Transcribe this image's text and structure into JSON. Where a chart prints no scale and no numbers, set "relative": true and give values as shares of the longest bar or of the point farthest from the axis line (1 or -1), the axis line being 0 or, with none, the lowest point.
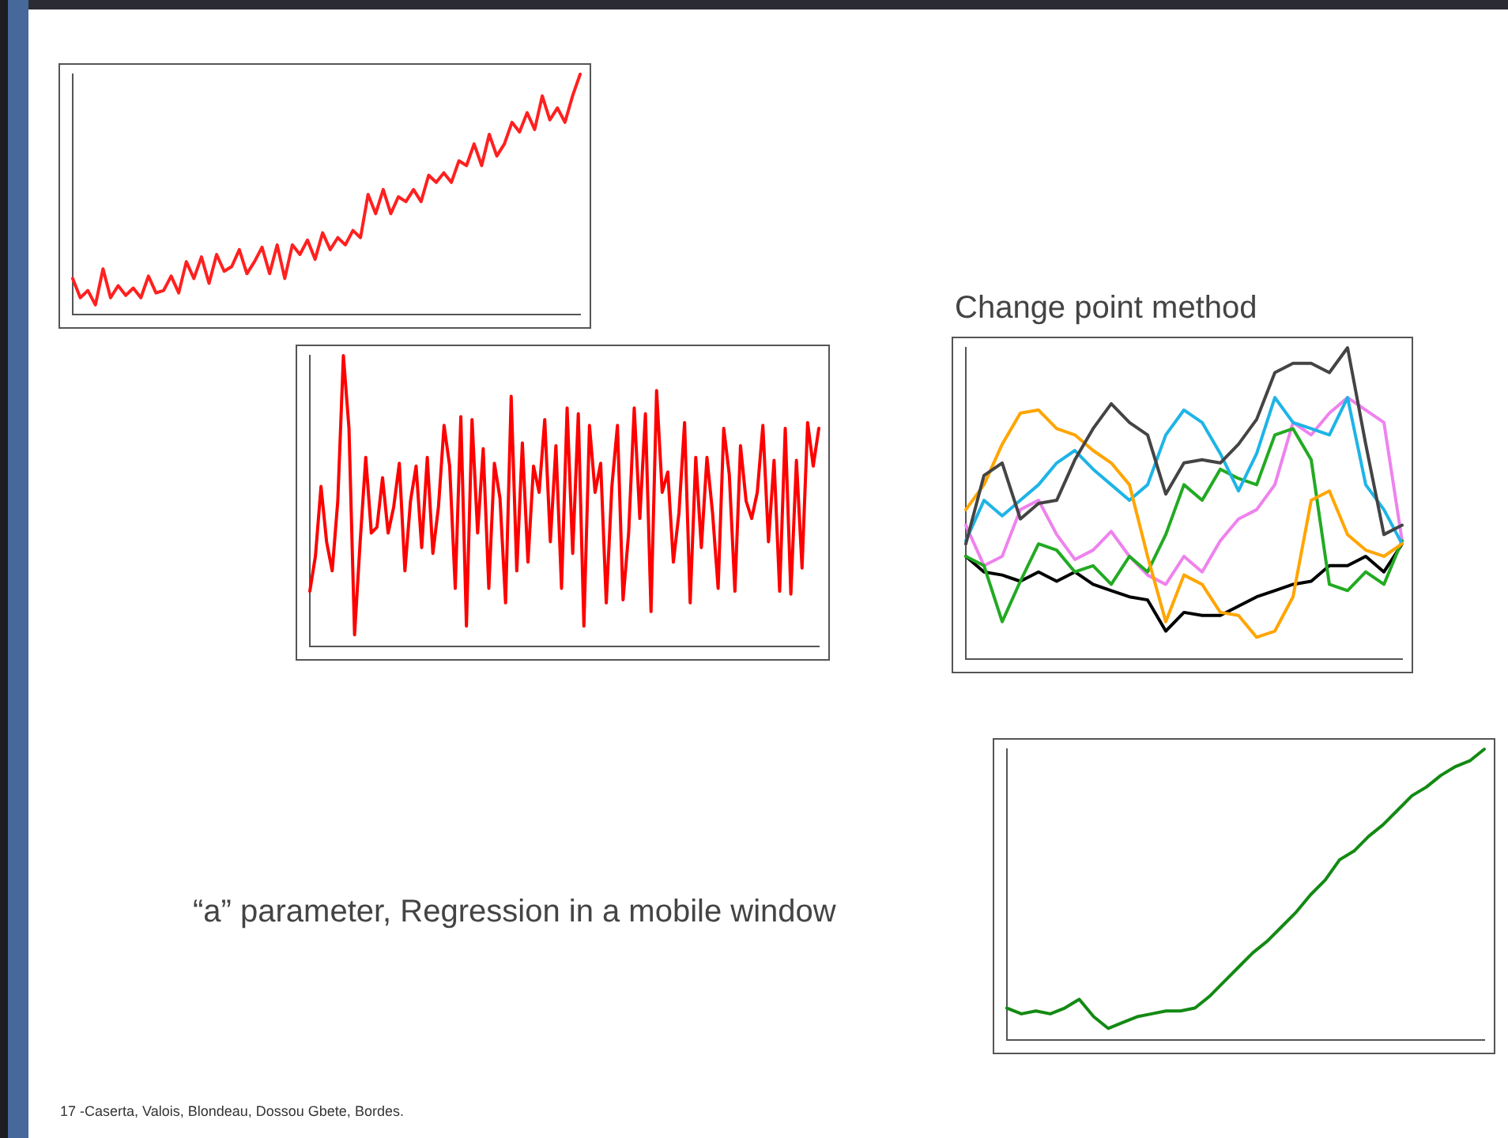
{
  "chart_data": [
    {
      "type": "line",
      "relative": true,
      "categories": [
        null,
        null,
        null,
        null,
        null,
        null,
        null,
        null,
        null,
        null,
        null,
        null,
        null,
        null,
        null,
        null,
        null,
        null,
        null,
        null,
        null,
        null,
        null,
        null,
        null,
        null,
        null,
        null,
        null,
        null,
        null,
        null,
        null,
        null,
        null,
        null,
        null,
        null,
        null,
        null,
        null,
        null,
        null,
        null,
        null,
        null,
        null,
        null,
        null,
        null,
        null,
        null,
        null,
        null,
        null,
        null,
        null,
        null,
        null,
        null,
        null,
        null,
        null,
        null,
        null,
        null,
        null,
        null
      ],
      "series": [
        {
          "color": "#ff2020",
          "values": [
            0.15,
            0.07,
            0.1,
            0.04,
            0.19,
            0.07,
            0.12,
            0.08,
            0.11,
            0.07,
            0.16,
            0.09,
            0.1,
            0.16,
            0.09,
            0.22,
            0.15,
            0.24,
            0.13,
            0.25,
            0.18,
            0.2,
            0.27,
            0.17,
            0.22,
            0.28,
            0.17,
            0.29,
            0.15,
            0.29,
            0.25,
            0.31,
            0.23,
            0.34,
            0.27,
            0.32,
            0.29,
            0.35,
            0.32,
            0.5,
            0.42,
            0.52,
            0.42,
            0.49,
            0.47,
            0.52,
            0.47,
            0.58,
            0.55,
            0.59,
            0.55,
            0.64,
            0.62,
            0.71,
            0.62,
            0.75,
            0.66,
            0.71,
            0.8,
            0.76,
            0.84,
            0.77,
            0.91,
            0.81,
            0.86,
            0.8,
            0.91,
            1
          ]
        }
      ]
    },
    {
      "type": "line",
      "relative": true,
      "categories": [
        null,
        null,
        null,
        null,
        null,
        null,
        null,
        null,
        null,
        null,
        null,
        null,
        null,
        null,
        null,
        null,
        null,
        null,
        null,
        null,
        null,
        null,
        null,
        null,
        null,
        null,
        null,
        null,
        null,
        null,
        null,
        null,
        null,
        null,
        null,
        null,
        null,
        null,
        null,
        null,
        null,
        null,
        null,
        null,
        null,
        null,
        null,
        null,
        null,
        null,
        null,
        null,
        null,
        null,
        null,
        null,
        null,
        null,
        null,
        null,
        null,
        null,
        null,
        null,
        null,
        null,
        null,
        null,
        null,
        null,
        null,
        null,
        null,
        null,
        null,
        null,
        null,
        null,
        null,
        null,
        null,
        null,
        null,
        null,
        null,
        null,
        null,
        null,
        null,
        null,
        null,
        null
      ],
      "series": [
        {
          "color": "#ff0000",
          "values": [
            0.19,
            0.31,
            0.55,
            0.36,
            0.26,
            0.5,
            1,
            0.75,
            0.04,
            0.36,
            0.65,
            0.39,
            0.41,
            0.58,
            0.39,
            0.48,
            0.63,
            0.26,
            0.5,
            0.62,
            0.34,
            0.65,
            0.32,
            0.48,
            0.76,
            0.62,
            0.2,
            0.79,
            0.07,
            0.78,
            0.39,
            0.68,
            0.2,
            0.63,
            0.51,
            0.15,
            0.86,
            0.26,
            0.7,
            0.29,
            0.62,
            0.53,
            0.78,
            0.36,
            0.69,
            0.2,
            0.82,
            0.32,
            0.8,
            0.07,
            0.76,
            0.53,
            0.63,
            0.15,
            0.55,
            0.76,
            0.16,
            0.39,
            0.82,
            0.44,
            0.8,
            0.12,
            0.88,
            0.53,
            0.6,
            0.29,
            0.46,
            0.77,
            0.15,
            0.65,
            0.34,
            0.65,
            0.46,
            0.2,
            0.75,
            0.59,
            0.19,
            0.69,
            0.5,
            0.44,
            0.53,
            0.76,
            0.36,
            0.64,
            0.19,
            0.75,
            0.18,
            0.64,
            0.27,
            0.77,
            0.62,
            0.75
          ]
        }
      ]
    },
    {
      "type": "line",
      "relative": true,
      "title": "Change point method",
      "categories": [
        null,
        null,
        null,
        null,
        null,
        null,
        null,
        null,
        null,
        null,
        null,
        null,
        null,
        null,
        null,
        null,
        null,
        null,
        null,
        null,
        null,
        null,
        null,
        null,
        null
      ],
      "series": [
        {
          "color": "#444444",
          "values": [
            0.37,
            0.59,
            0.63,
            0.45,
            0.5,
            0.51,
            0.64,
            0.74,
            0.82,
            0.76,
            0.72,
            0.53,
            0.63,
            0.64,
            0.63,
            0.69,
            0.77,
            0.92,
            0.95,
            0.95,
            0.92,
            1,
            0.69,
            0.4,
            0.43
          ]
        },
        {
          "color": "#ffa500",
          "values": [
            0.48,
            0.56,
            0.69,
            0.79,
            0.8,
            0.74,
            0.72,
            0.67,
            0.63,
            0.56,
            0.33,
            0.12,
            0.27,
            0.24,
            0.15,
            0.14,
            0.07,
            0.09,
            0.2,
            0.51,
            0.54,
            0.4,
            0.35,
            0.33,
            0.37
          ]
        },
        {
          "color": "#1eb4e6",
          "values": [
            0.38,
            0.51,
            0.46,
            0.51,
            0.56,
            0.63,
            0.67,
            0.61,
            0.56,
            0.51,
            0.56,
            0.72,
            0.8,
            0.76,
            0.66,
            0.54,
            0.66,
            0.84,
            0.76,
            0.74,
            0.72,
            0.84,
            0.56,
            0.48,
            0.37
          ]
        },
        {
          "color": "#22aa22",
          "values": [
            0.33,
            0.3,
            0.12,
            0.25,
            0.37,
            0.35,
            0.28,
            0.3,
            0.24,
            0.33,
            0.28,
            0.4,
            0.56,
            0.51,
            0.61,
            0.58,
            0.56,
            0.72,
            0.74,
            0.64,
            0.24,
            0.22,
            0.28,
            0.24,
            0.38
          ]
        },
        {
          "color": "#ee82ee",
          "values": [
            0.43,
            0.3,
            0.33,
            0.48,
            0.51,
            0.4,
            0.32,
            0.35,
            0.41,
            0.33,
            0.27,
            0.24,
            0.33,
            0.28,
            0.38,
            0.45,
            0.48,
            0.56,
            0.76,
            0.72,
            0.79,
            0.84,
            0.8,
            0.76,
            0.38
          ]
        },
        {
          "color": "#000000",
          "values": [
            0.33,
            0.28,
            0.27,
            0.25,
            0.28,
            0.25,
            0.28,
            0.24,
            0.22,
            0.2,
            0.19,
            0.09,
            0.15,
            0.14,
            0.14,
            0.17,
            0.2,
            0.22,
            0.24,
            0.25,
            0.3,
            0.3,
            0.33,
            0.28,
            0.37
          ]
        }
      ]
    },
    {
      "type": "line",
      "relative": true,
      "title": "“a” parameter, Regression in a mobile window",
      "categories": [
        null,
        null,
        null,
        null,
        null,
        null,
        null,
        null,
        null,
        null,
        null,
        null,
        null,
        null,
        null,
        null,
        null,
        null,
        null,
        null,
        null,
        null,
        null,
        null,
        null,
        null,
        null,
        null,
        null,
        null,
        null,
        null,
        null,
        null
      ],
      "series": [
        {
          "color": "#138a13",
          "values": [
            0.11,
            0.09,
            0.1,
            0.09,
            0.11,
            0.14,
            0.08,
            0.04,
            0.06,
            0.08,
            0.09,
            0.1,
            0.1,
            0.11,
            0.15,
            0.2,
            0.25,
            0.3,
            0.34,
            0.39,
            0.44,
            0.5,
            0.55,
            0.62,
            0.65,
            0.7,
            0.74,
            0.79,
            0.84,
            0.87,
            0.91,
            0.94,
            0.96,
            1
          ]
        }
      ]
    },
    {
      "type": "other",
      "annotations": [
        "17 -Caserta, Valois, Blondeau, Dossou Gbete, Bordes."
      ]
    }
  ]
}
